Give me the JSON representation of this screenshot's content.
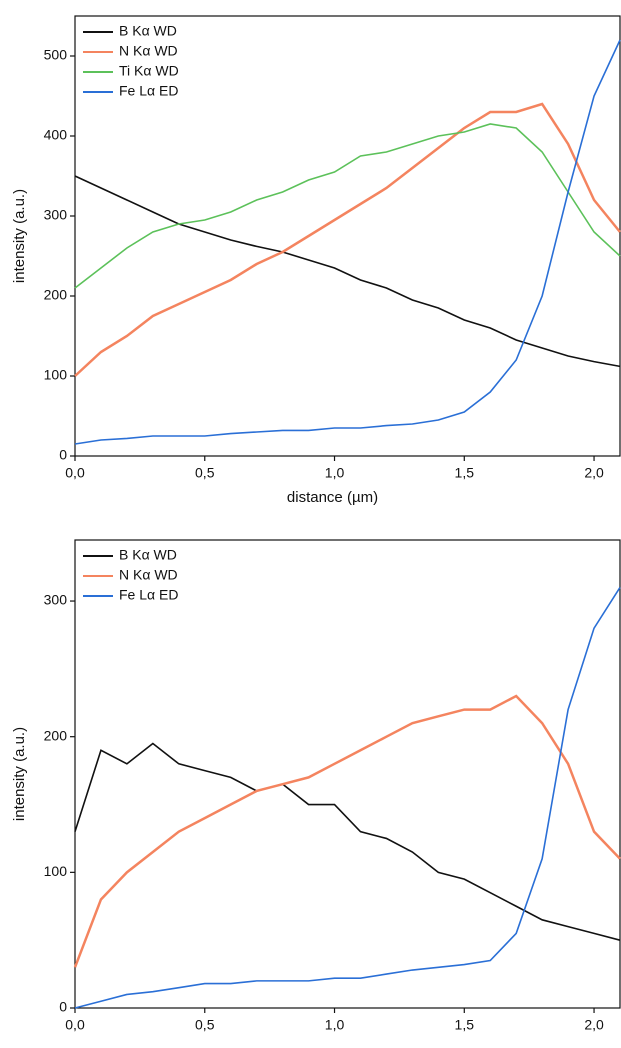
{
  "chart_data": [
    {
      "type": "line",
      "x": [
        0,
        0.1,
        0.2,
        0.3,
        0.4,
        0.5,
        0.6,
        0.7,
        0.8,
        0.9,
        1.0,
        1.1,
        1.2,
        1.3,
        1.4,
        1.5,
        1.6,
        1.7,
        1.8,
        1.9,
        2.0,
        2.1
      ],
      "series": [
        {
          "name": "B Kα WD",
          "color": "#111111",
          "values": [
            350,
            335,
            320,
            305,
            290,
            280,
            270,
            262,
            255,
            245,
            235,
            220,
            210,
            195,
            185,
            170,
            160,
            145,
            135,
            125,
            118,
            112
          ]
        },
        {
          "name": "N Kα WD",
          "color": "#f4845f",
          "values": [
            100,
            130,
            150,
            175,
            190,
            205,
            220,
            240,
            255,
            275,
            295,
            315,
            335,
            360,
            385,
            410,
            430,
            430,
            440,
            390,
            320,
            280
          ]
        },
        {
          "name": "Ti Kα WD",
          "color": "#5cc15a",
          "values": [
            210,
            235,
            260,
            280,
            290,
            295,
            305,
            320,
            330,
            345,
            355,
            375,
            380,
            390,
            400,
            405,
            415,
            410,
            380,
            330,
            280,
            250
          ]
        },
        {
          "name": "Fe Lα ED",
          "color": "#2a6fd6",
          "values": [
            15,
            20,
            22,
            25,
            25,
            25,
            28,
            30,
            32,
            32,
            35,
            35,
            38,
            40,
            45,
            55,
            80,
            120,
            200,
            330,
            450,
            520
          ]
        }
      ],
      "xlabel": "distance (µm)",
      "ylabel": "intensity (a.u.)",
      "xlim": [
        0,
        2.1
      ],
      "ylim": [
        0,
        550
      ],
      "xticks": [
        {
          "value": 0,
          "label": "0,0"
        },
        {
          "value": 0.5,
          "label": "0,5"
        },
        {
          "value": 1.0,
          "label": "1,0"
        },
        {
          "value": 1.5,
          "label": "1,5"
        },
        {
          "value": 2.0,
          "label": "2,0"
        }
      ],
      "yticks": [
        0,
        100,
        200,
        300,
        400,
        500
      ],
      "legend": "upper left"
    },
    {
      "type": "line",
      "x": [
        0,
        0.1,
        0.2,
        0.3,
        0.4,
        0.5,
        0.6,
        0.7,
        0.8,
        0.9,
        1.0,
        1.1,
        1.2,
        1.3,
        1.4,
        1.5,
        1.6,
        1.7,
        1.8,
        1.9,
        2.0,
        2.1
      ],
      "series": [
        {
          "name": "B Kα WD",
          "color": "#111111",
          "values": [
            130,
            190,
            180,
            195,
            180,
            175,
            170,
            160,
            165,
            150,
            150,
            130,
            125,
            115,
            100,
            95,
            85,
            75,
            65,
            60,
            55,
            50
          ]
        },
        {
          "name": "N Kα WD",
          "color": "#f4845f",
          "values": [
            30,
            80,
            100,
            115,
            130,
            140,
            150,
            160,
            165,
            170,
            180,
            190,
            200,
            210,
            215,
            220,
            220,
            230,
            210,
            180,
            130,
            110
          ]
        },
        {
          "name": "Fe Lα ED",
          "color": "#2a6fd6",
          "values": [
            0,
            5,
            10,
            12,
            15,
            18,
            18,
            20,
            20,
            20,
            22,
            22,
            25,
            28,
            30,
            32,
            35,
            55,
            110,
            220,
            280,
            310
          ]
        }
      ],
      "xlabel": "distance (µm)",
      "ylabel": "intensity (a.u.)",
      "xlim": [
        0,
        2.1
      ],
      "ylim": [
        0,
        345
      ],
      "xticks": [
        {
          "value": 0,
          "label": "0,0"
        },
        {
          "value": 0.5,
          "label": "0,5"
        },
        {
          "value": 1.0,
          "label": "1,0"
        },
        {
          "value": 1.5,
          "label": "1,5"
        },
        {
          "value": 2.0,
          "label": "2,0"
        }
      ],
      "yticks": [
        0,
        100,
        200,
        300
      ],
      "legend": "upper left"
    }
  ]
}
